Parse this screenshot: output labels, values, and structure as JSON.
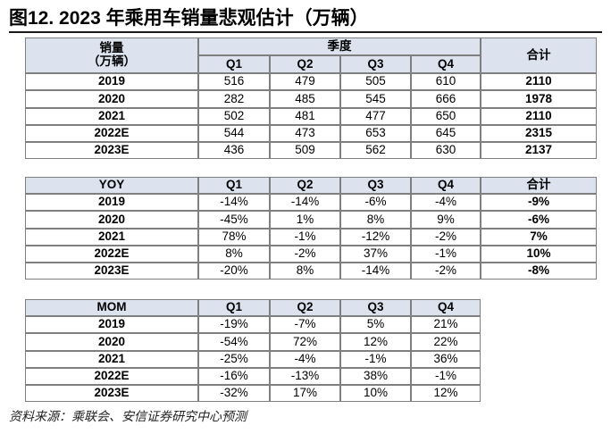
{
  "title": "图12. 2023 年乘用车销量悲观估计（万辆）",
  "tables": [
    {
      "header": {
        "label": [
          "销量",
          "（万辆）"
        ],
        "group": "季度",
        "quarters": [
          "Q1",
          "Q2",
          "Q3",
          "Q4"
        ],
        "total": "合计"
      },
      "rows": [
        [
          "2019",
          "516",
          "479",
          "505",
          "610",
          "2110"
        ],
        [
          "2020",
          "282",
          "485",
          "545",
          "666",
          "1978"
        ],
        [
          "2021",
          "502",
          "481",
          "477",
          "650",
          "2110"
        ],
        [
          "2022E",
          "544",
          "473",
          "653",
          "645",
          "2315"
        ],
        [
          "2023E",
          "436",
          "509",
          "562",
          "630",
          "2137"
        ]
      ]
    },
    {
      "header": {
        "label": "YOY",
        "quarters": [
          "Q1",
          "Q2",
          "Q3",
          "Q4"
        ],
        "total": "合计"
      },
      "rows": [
        [
          "2019",
          "-14%",
          "-14%",
          "-6%",
          "-4%",
          "-9%"
        ],
        [
          "2020",
          "-45%",
          "1%",
          "8%",
          "9%",
          "-6%"
        ],
        [
          "2021",
          "78%",
          "-1%",
          "-12%",
          "-2%",
          "7%"
        ],
        [
          "2022E",
          "8%",
          "-2%",
          "37%",
          "-1%",
          "10%"
        ],
        [
          "2023E",
          "-20%",
          "8%",
          "-14%",
          "-2%",
          "-8%"
        ]
      ]
    },
    {
      "header": {
        "label": "MOM",
        "quarters": [
          "Q1",
          "Q2",
          "Q3",
          "Q4"
        ]
      },
      "rows": [
        [
          "2019",
          "-19%",
          "-7%",
          "5%",
          "21%"
        ],
        [
          "2020",
          "-54%",
          "72%",
          "12%",
          "22%"
        ],
        [
          "2021",
          "-25%",
          "-4%",
          "-1%",
          "36%"
        ],
        [
          "2022E",
          "-16%",
          "-13%",
          "38%",
          "-1%"
        ],
        [
          "2023E",
          "-32%",
          "17%",
          "10%",
          "12%"
        ]
      ]
    }
  ],
  "source": "资料来源：乘联会、安信证券研究中心预测"
}
